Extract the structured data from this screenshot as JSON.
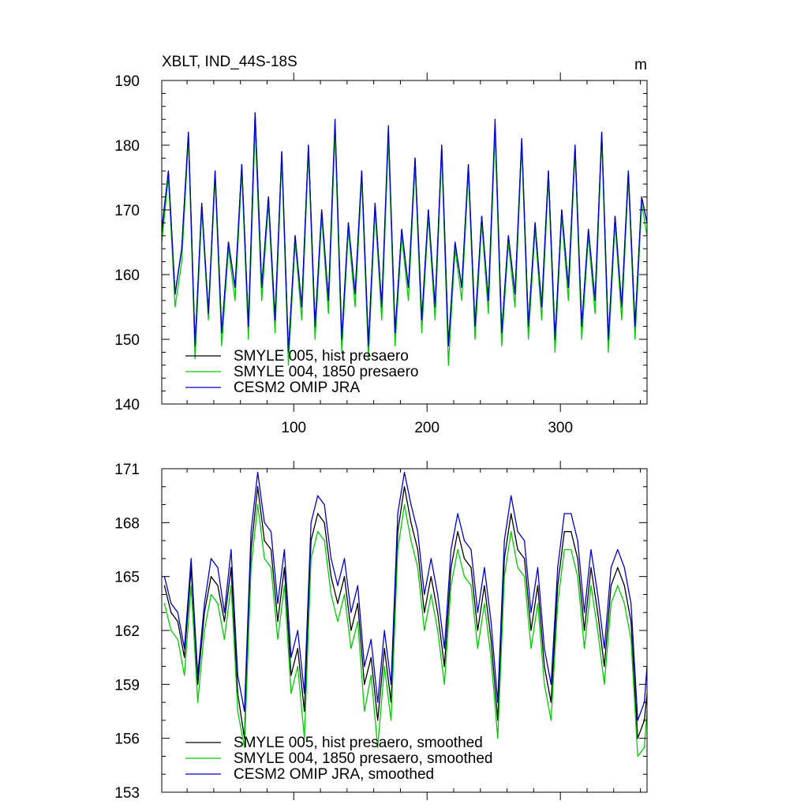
{
  "chart_data": [
    {
      "type": "line",
      "title": "XBLT, IND_44S-18S",
      "units": "m",
      "xlabel": "",
      "ylabel": "",
      "xlim": [
        1,
        365
      ],
      "ylim": [
        140,
        190
      ],
      "xticks": [
        100,
        200,
        300
      ],
      "yticks": [
        140,
        150,
        160,
        170,
        180,
        190
      ],
      "legend": {
        "placement": "bottom-left"
      },
      "series": [
        {
          "name": "SMYLE 005, hist presaero",
          "color": "#000000",
          "x": [
            1,
            6,
            11,
            16,
            21,
            26,
            31,
            36,
            41,
            46,
            51,
            56,
            61,
            66,
            71,
            76,
            81,
            86,
            91,
            96,
            101,
            106,
            111,
            116,
            121,
            126,
            131,
            136,
            141,
            146,
            151,
            156,
            161,
            166,
            171,
            176,
            181,
            186,
            191,
            196,
            201,
            206,
            211,
            216,
            221,
            226,
            231,
            236,
            241,
            246,
            251,
            256,
            261,
            266,
            271,
            276,
            281,
            286,
            291,
            296,
            301,
            306,
            311,
            316,
            321,
            326,
            331,
            336,
            341,
            346,
            351,
            356,
            361,
            365
          ],
          "values": [
            166,
            176,
            157,
            164,
            182,
            149,
            171,
            154,
            176,
            151,
            165,
            158,
            177,
            152,
            185,
            158,
            172,
            153,
            179,
            148,
            166,
            155,
            180,
            152,
            170,
            156,
            183,
            150,
            168,
            157,
            176,
            149,
            171,
            155,
            182,
            151,
            167,
            158,
            178,
            153,
            170,
            155,
            180,
            149,
            165,
            158,
            177,
            152,
            169,
            156,
            183,
            151,
            166,
            157,
            181,
            152,
            168,
            155,
            176,
            150,
            170,
            158,
            180,
            152,
            167,
            156,
            182,
            150,
            169,
            155,
            176,
            152,
            172,
            168
          ]
        },
        {
          "name": "SMYLE 004, 1850 presaero",
          "color": "#00cc00",
          "x": [
            1,
            6,
            11,
            16,
            21,
            26,
            31,
            36,
            41,
            46,
            51,
            56,
            61,
            66,
            71,
            76,
            81,
            86,
            91,
            96,
            101,
            106,
            111,
            116,
            121,
            126,
            131,
            136,
            141,
            146,
            151,
            156,
            161,
            166,
            171,
            176,
            181,
            186,
            191,
            196,
            201,
            206,
            211,
            216,
            221,
            226,
            231,
            236,
            241,
            246,
            251,
            256,
            261,
            266,
            271,
            276,
            281,
            286,
            291,
            296,
            301,
            306,
            311,
            316,
            321,
            326,
            331,
            336,
            341,
            346,
            351,
            356,
            361,
            365
          ],
          "values": [
            165,
            175,
            155,
            162,
            181,
            147,
            170,
            153,
            175,
            149,
            164,
            156,
            176,
            150,
            183,
            156,
            171,
            151,
            178,
            146,
            165,
            153,
            179,
            150,
            169,
            154,
            182,
            148,
            167,
            155,
            175,
            147,
            170,
            153,
            181,
            149,
            166,
            156,
            177,
            151,
            169,
            153,
            179,
            146,
            164,
            156,
            176,
            150,
            168,
            154,
            182,
            149,
            165,
            155,
            180,
            150,
            167,
            153,
            175,
            148,
            169,
            156,
            179,
            150,
            166,
            154,
            181,
            148,
            168,
            153,
            175,
            150,
            171,
            166
          ]
        },
        {
          "name": "CESM2 OMIP JRA",
          "color": "#0000cc",
          "x": [
            1,
            6,
            11,
            16,
            21,
            26,
            31,
            36,
            41,
            46,
            51,
            56,
            61,
            66,
            71,
            76,
            81,
            86,
            91,
            96,
            101,
            106,
            111,
            116,
            121,
            126,
            131,
            136,
            141,
            146,
            151,
            156,
            161,
            166,
            171,
            176,
            181,
            186,
            191,
            196,
            201,
            206,
            211,
            216,
            221,
            226,
            231,
            236,
            241,
            246,
            251,
            256,
            261,
            266,
            271,
            276,
            281,
            286,
            291,
            296,
            301,
            306,
            311,
            316,
            321,
            326,
            331,
            336,
            341,
            346,
            351,
            356,
            361,
            365
          ],
          "values": [
            167,
            176,
            157,
            164,
            182,
            149,
            171,
            154,
            176,
            151,
            165,
            158,
            177,
            152,
            185,
            158,
            172,
            153,
            179,
            148,
            166,
            155,
            180,
            152,
            170,
            156,
            184,
            150,
            168,
            157,
            176,
            149,
            171,
            155,
            183,
            151,
            167,
            158,
            178,
            153,
            170,
            155,
            180,
            149,
            165,
            158,
            177,
            152,
            169,
            156,
            184,
            151,
            166,
            157,
            181,
            152,
            168,
            155,
            176,
            150,
            170,
            158,
            180,
            152,
            167,
            156,
            182,
            150,
            169,
            155,
            176,
            152,
            172,
            168
          ]
        }
      ]
    },
    {
      "type": "line",
      "title": "",
      "xlabel": "",
      "ylabel": "",
      "xlim": [
        1,
        365
      ],
      "ylim": [
        153,
        171
      ],
      "xticks": [
        100,
        200,
        300
      ],
      "yticks": [
        153,
        156,
        159,
        162,
        165,
        168,
        171
      ],
      "legend": {
        "placement": "bottom-left"
      },
      "series": [
        {
          "name": "SMYLE 005, hist presaero, smoothed",
          "color": "#000000",
          "x": [
            3,
            8,
            13,
            18,
            23,
            28,
            33,
            38,
            43,
            48,
            53,
            58,
            63,
            68,
            73,
            78,
            83,
            88,
            93,
            98,
            103,
            108,
            113,
            118,
            123,
            128,
            133,
            138,
            143,
            148,
            153,
            158,
            163,
            168,
            173,
            178,
            183,
            188,
            193,
            198,
            203,
            208,
            213,
            218,
            223,
            228,
            233,
            238,
            243,
            248,
            253,
            258,
            263,
            268,
            273,
            278,
            283,
            288,
            293,
            298,
            303,
            308,
            313,
            318,
            323,
            328,
            333,
            338,
            343,
            348,
            353,
            358,
            363,
            365
          ],
          "values": [
            164.5,
            163,
            162.5,
            160.5,
            165.5,
            159,
            163,
            165,
            164.5,
            162.5,
            165.5,
            158.5,
            156,
            166.5,
            170,
            167,
            166.5,
            162.5,
            165.5,
            159.5,
            161,
            157.5,
            167,
            168.5,
            168,
            165,
            163.5,
            165,
            162,
            163.5,
            159,
            160.5,
            157,
            161,
            158,
            167.5,
            170,
            168,
            166.5,
            163,
            165,
            163,
            160,
            165.5,
            167.5,
            166,
            165.5,
            162,
            164.5,
            161.5,
            157,
            166,
            168.5,
            166.5,
            166,
            162,
            164.5,
            160,
            158,
            164.5,
            167.5,
            167.5,
            166,
            162,
            165.5,
            163,
            160,
            164.5,
            165.5,
            164.5,
            162.5,
            156,
            157,
            158.5
          ]
        },
        {
          "name": "SMYLE 004, 1850 presaero, smoothed",
          "color": "#00cc00",
          "x": [
            3,
            8,
            13,
            18,
            23,
            28,
            33,
            38,
            43,
            48,
            53,
            58,
            63,
            68,
            73,
            78,
            83,
            88,
            93,
            98,
            103,
            108,
            113,
            118,
            123,
            128,
            133,
            138,
            143,
            148,
            153,
            158,
            163,
            168,
            173,
            178,
            183,
            188,
            193,
            198,
            203,
            208,
            213,
            218,
            223,
            228,
            233,
            238,
            243,
            248,
            253,
            258,
            263,
            268,
            273,
            278,
            283,
            288,
            293,
            298,
            303,
            308,
            313,
            318,
            323,
            328,
            333,
            338,
            343,
            348,
            353,
            358,
            363,
            365
          ],
          "values": [
            163.5,
            162,
            161.5,
            159.5,
            164.5,
            158,
            162,
            164,
            163.5,
            161.5,
            164.5,
            157.5,
            155.5,
            165.5,
            169,
            166,
            165.5,
            161.5,
            164.5,
            158.5,
            160,
            156,
            166,
            167.5,
            167,
            164,
            162.5,
            164,
            161,
            162.5,
            157.5,
            159.5,
            155.5,
            160,
            157,
            166.5,
            169,
            167,
            165.5,
            162,
            164,
            162,
            159,
            164.5,
            166.5,
            165,
            164.5,
            161,
            163.5,
            160.5,
            156,
            165,
            167.5,
            165.5,
            165,
            161,
            163.5,
            159,
            157,
            163.5,
            166.5,
            166.5,
            165,
            161,
            164.5,
            162,
            159,
            163.5,
            164.5,
            163.5,
            161.5,
            155,
            155.5,
            157.5
          ]
        },
        {
          "name": "CESM2 OMIP JRA, smoothed",
          "color": "#0000cc",
          "x": [
            3,
            8,
            13,
            18,
            23,
            28,
            33,
            38,
            43,
            48,
            53,
            58,
            63,
            68,
            73,
            78,
            83,
            88,
            93,
            98,
            103,
            108,
            113,
            118,
            123,
            128,
            133,
            138,
            143,
            148,
            153,
            158,
            163,
            168,
            173,
            178,
            183,
            188,
            193,
            198,
            203,
            208,
            213,
            218,
            223,
            228,
            233,
            238,
            243,
            248,
            253,
            258,
            263,
            268,
            273,
            278,
            283,
            288,
            293,
            298,
            303,
            308,
            313,
            318,
            323,
            328,
            333,
            338,
            343,
            348,
            353,
            358,
            363,
            365
          ],
          "values": [
            165,
            163.5,
            163,
            161,
            166,
            159.5,
            163.5,
            166,
            165.5,
            163,
            166.5,
            159.5,
            157.5,
            167.5,
            170.8,
            168,
            167.5,
            163.5,
            166.5,
            160.5,
            162,
            158.5,
            168,
            169.5,
            169,
            166,
            164.5,
            166,
            163,
            164.5,
            160,
            161.5,
            158,
            162,
            159,
            168.5,
            170.8,
            169,
            167.5,
            164,
            166,
            164,
            161,
            166.5,
            168.5,
            167,
            166.5,
            163,
            165.5,
            162.5,
            158,
            167,
            169.5,
            167.5,
            167,
            163,
            165.5,
            161,
            159,
            165.5,
            168.5,
            168.5,
            167,
            163,
            166.5,
            164,
            161,
            165.5,
            166.5,
            165.5,
            163.5,
            157,
            158,
            160
          ]
        }
      ]
    }
  ]
}
